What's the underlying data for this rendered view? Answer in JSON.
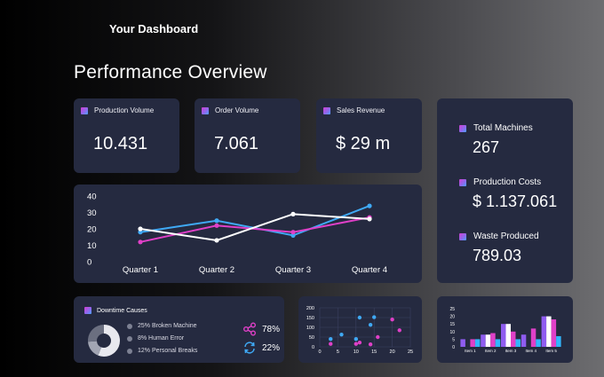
{
  "header": {
    "app_title": "Your Dashboard",
    "page_title": "Performance Overview"
  },
  "kpis": [
    {
      "label": "Production Volume",
      "value": "10.431"
    },
    {
      "label": "Order Volume",
      "value": "7.061"
    },
    {
      "label": "Sales Revenue",
      "value": "$ 29 m"
    }
  ],
  "side_stats": [
    {
      "label": "Total Machines",
      "value": "267"
    },
    {
      "label": "Production Costs",
      "value": "$ 1.137.061"
    },
    {
      "label": "Waste Produced",
      "value": "789.03"
    }
  ],
  "downtime": {
    "title": "Downtime Causes",
    "legend": [
      "25% Broken Machine",
      "8% Human Error",
      "12% Personal Breaks"
    ],
    "stats": [
      {
        "icon": "share-icon",
        "value": "78%"
      },
      {
        "icon": "refresh-icon",
        "value": "22%"
      }
    ]
  },
  "colors": {
    "card": "#252a40",
    "blue": "#3fa9f5",
    "pink": "#e040c8",
    "white": "#ffffff",
    "purple": "#8f5cf0",
    "cyan": "#32b6ff"
  },
  "chart_data": [
    {
      "type": "line",
      "categories": [
        "Quarter 1",
        "Quarter 2",
        "Quarter 3",
        "Quarter 4"
      ],
      "y_ticks": [
        "40",
        "30",
        "20",
        "10",
        "0"
      ],
      "ylim": [
        0,
        40
      ],
      "series": [
        {
          "color": "#3fa9f5",
          "values": [
            18,
            25,
            16,
            34
          ]
        },
        {
          "color": "#e040c8",
          "values": [
            12,
            22,
            18,
            27
          ]
        },
        {
          "color": "#ffffff",
          "values": [
            20,
            13,
            29,
            26
          ]
        }
      ]
    },
    {
      "type": "pie",
      "values": [
        25,
        8,
        12
      ]
    },
    {
      "type": "scatter",
      "x_ticks": [
        "0",
        "5",
        "10",
        "15",
        "20",
        "25"
      ],
      "y_ticks": [
        "200",
        "150",
        "100",
        "50",
        "0"
      ],
      "xlim": [
        0,
        25
      ],
      "ylim": [
        0,
        200
      ],
      "series": [
        {
          "color": "#3fa9f5",
          "points": [
            [
              3,
              40
            ],
            [
              6,
              63
            ],
            [
              10,
              40
            ],
            [
              11,
              150
            ],
            [
              15,
              152
            ],
            [
              14,
              113
            ]
          ]
        },
        {
          "color": "#e040c8",
          "points": [
            [
              3,
              15
            ],
            [
              10,
              15
            ],
            [
              11,
              22
            ],
            [
              16,
              50
            ],
            [
              22,
              85
            ],
            [
              20,
              140
            ],
            [
              14,
              13
            ]
          ]
        }
      ]
    },
    {
      "type": "bar",
      "categories": [
        "Item 1",
        "Item 2",
        "Item 3",
        "Item 4",
        "Item 5"
      ],
      "y_ticks": [
        "25",
        "20",
        "15",
        "10",
        "5",
        "0"
      ],
      "ylim": [
        0,
        25
      ],
      "series": [
        {
          "color": "#8f5cf0",
          "values": [
            5,
            8,
            15,
            8,
            20
          ]
        },
        {
          "color": "#ffffff",
          "values": [
            0,
            8,
            15,
            0,
            20
          ]
        },
        {
          "color": "#e040c8",
          "values": [
            5,
            9,
            10,
            12,
            18
          ]
        },
        {
          "color": "#32b6ff",
          "values": [
            5,
            5,
            5,
            5,
            7
          ]
        }
      ]
    }
  ]
}
